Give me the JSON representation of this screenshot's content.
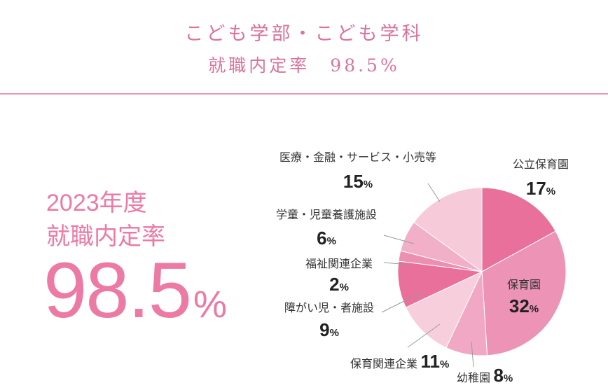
{
  "header": {
    "line1": "こども学部・こども学科",
    "line2": "就職内定率　98.5%"
  },
  "summary": {
    "year_label": "2023年度",
    "rate_label": "就職内定率",
    "rate_value": "98.5",
    "rate_unit": "%"
  },
  "chart_data": {
    "type": "pie",
    "unit": "%",
    "slices": [
      {
        "name": "公立保育園",
        "value": 17,
        "color": "#e8709a"
      },
      {
        "name": "保育園",
        "value": 32,
        "color": "#ed93b5"
      },
      {
        "name": "幼稚園",
        "value": 8,
        "color": "#f1a8c4"
      },
      {
        "name": "保育関連企業",
        "value": 11,
        "color": "#f7cfdc"
      },
      {
        "name": "障がい児・者施設",
        "value": 9,
        "color": "#e8709a"
      },
      {
        "name": "福祉関連企業",
        "value": 2,
        "color": "#ec8fb1"
      },
      {
        "name": "学童・児童養護施設",
        "value": 6,
        "color": "#f2b0c8"
      },
      {
        "name": "医療・金融・サービス・小売等",
        "value": 15,
        "color": "#f6cad9"
      }
    ]
  }
}
